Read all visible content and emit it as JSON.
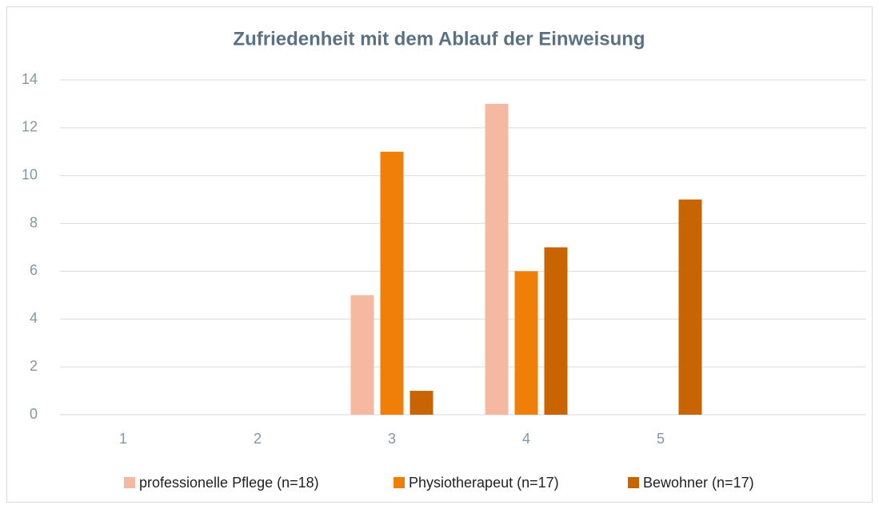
{
  "chart_data": {
    "type": "bar",
    "title": "Zufriedenheit mit dem Ablauf der Einweisung",
    "categories": [
      "1",
      "2",
      "3",
      "4",
      "5",
      null
    ],
    "series": [
      {
        "name": "professionelle Pflege (n=18)",
        "color": "#f5b9a1",
        "values": [
          0,
          0,
          5,
          13,
          0,
          null
        ]
      },
      {
        "name": "Physiotherapeut (n=17)",
        "color": "#f07f09",
        "values": [
          0,
          0,
          11,
          6,
          0,
          null
        ]
      },
      {
        "name": "Bewohner (n=17)",
        "color": "#c96500",
        "values": [
          0,
          0,
          1,
          7,
          9,
          null
        ]
      }
    ],
    "ylim": [
      0,
      14
    ],
    "yticks": [
      0,
      2,
      4,
      6,
      8,
      10,
      12,
      14
    ],
    "grid": true,
    "legend": "bottom"
  }
}
